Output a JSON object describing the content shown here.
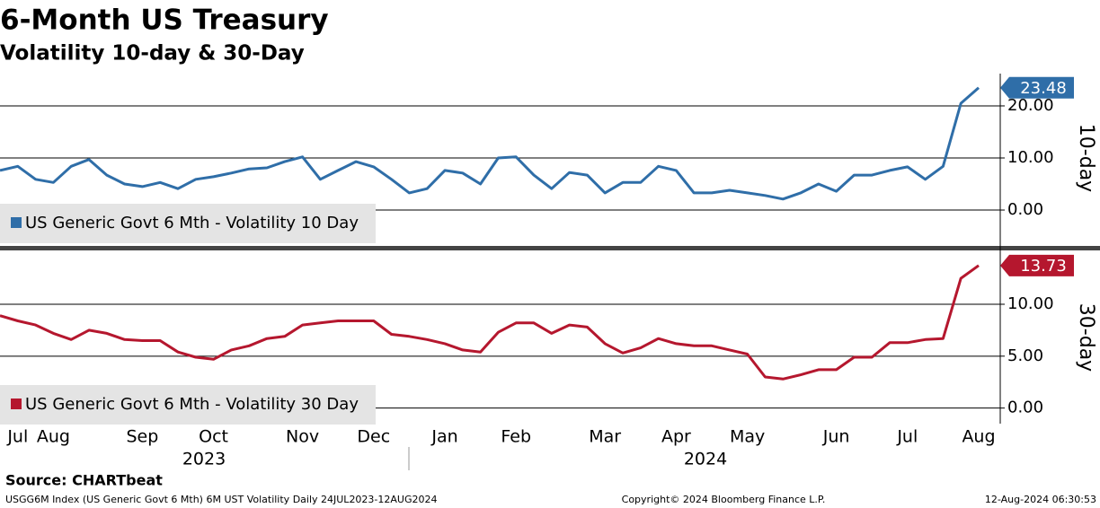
{
  "title": "6-Month US Treasury",
  "subtitle": "Volatility 10-day & 30-Day",
  "source": "Source: CHARTbeat",
  "footer": {
    "left": "USGG6M Index (US Generic Govt 6 Mth) 6M UST Volatility  Daily 24JUL2023-12AUG2024",
    "center": "Copyright© 2024 Bloomberg Finance L.P.",
    "right": "12-Aug-2024 06:30:53"
  },
  "years": [
    "2023",
    "2024"
  ],
  "chart_data": [
    {
      "type": "line",
      "y_label": "10-day",
      "series": [
        {
          "name": "US Generic Govt 6 Mth - Volatility 10 Day",
          "color": "#2f6ea8",
          "values": [
            7.6,
            8.4,
            5.9,
            5.3,
            8.4,
            9.7,
            6.7,
            5.0,
            4.5,
            5.3,
            4.1,
            5.9,
            6.4,
            7.1,
            7.9,
            8.1,
            9.3,
            10.2,
            5.9,
            7.6,
            9.3,
            8.3,
            5.9,
            3.3,
            4.1,
            7.6,
            7.1,
            5.0,
            10.0,
            10.2,
            6.7,
            4.1,
            7.2,
            6.7,
            3.3,
            5.3,
            5.3,
            8.4,
            7.6,
            3.3,
            3.3,
            3.8,
            3.3,
            2.8,
            2.1,
            3.3,
            5.0,
            3.6,
            6.7,
            6.7,
            7.6,
            8.3,
            5.9,
            8.4,
            20.5,
            23.48
          ]
        }
      ],
      "ylim": [
        -6.2,
        26.2
      ],
      "yticks": [
        {
          "value": 0,
          "label": "0.00"
        },
        {
          "value": 10,
          "label": "10.00"
        },
        {
          "value": 20,
          "label": "20.00"
        }
      ],
      "grid": true
    },
    {
      "type": "line",
      "y_label": "30-day",
      "categories": [
        null,
        "Jul",
        null,
        "Aug",
        null,
        null,
        null,
        null,
        "Sep",
        null,
        null,
        null,
        "Oct",
        null,
        null,
        null,
        null,
        "Nov",
        null,
        null,
        null,
        "Dec",
        null,
        null,
        null,
        "Jan",
        null,
        null,
        null,
        "Feb",
        null,
        null,
        null,
        null,
        "Mar",
        null,
        null,
        null,
        "Apr",
        null,
        null,
        null,
        "May",
        null,
        null,
        null,
        null,
        "Jun",
        null,
        null,
        null,
        "Jul",
        null,
        null,
        null,
        "Aug"
      ],
      "series": [
        {
          "name": "US Generic Govt 6 Mth - Volatility 30 Day",
          "color": "#b5172e",
          "values": [
            8.9,
            8.4,
            8.0,
            7.2,
            6.6,
            7.5,
            7.2,
            6.6,
            6.5,
            6.5,
            5.4,
            4.9,
            4.7,
            5.6,
            6.0,
            6.7,
            6.9,
            8.0,
            8.2,
            8.4,
            8.4,
            8.4,
            7.1,
            6.9,
            6.6,
            6.2,
            5.6,
            5.4,
            7.3,
            8.2,
            8.2,
            7.2,
            8.0,
            7.8,
            6.2,
            5.3,
            5.8,
            6.7,
            6.2,
            6.0,
            6.0,
            5.6,
            5.2,
            3.0,
            2.8,
            3.2,
            3.7,
            3.7,
            4.9,
            4.9,
            6.3,
            6.3,
            6.6,
            6.7,
            12.5,
            13.73
          ]
        }
      ],
      "ylim": [
        -1.5,
        15.1
      ],
      "yticks": [
        {
          "value": 0,
          "label": "0.00"
        },
        {
          "value": 5,
          "label": "5.00"
        },
        {
          "value": 10,
          "label": "10.00"
        }
      ],
      "grid": true
    }
  ]
}
